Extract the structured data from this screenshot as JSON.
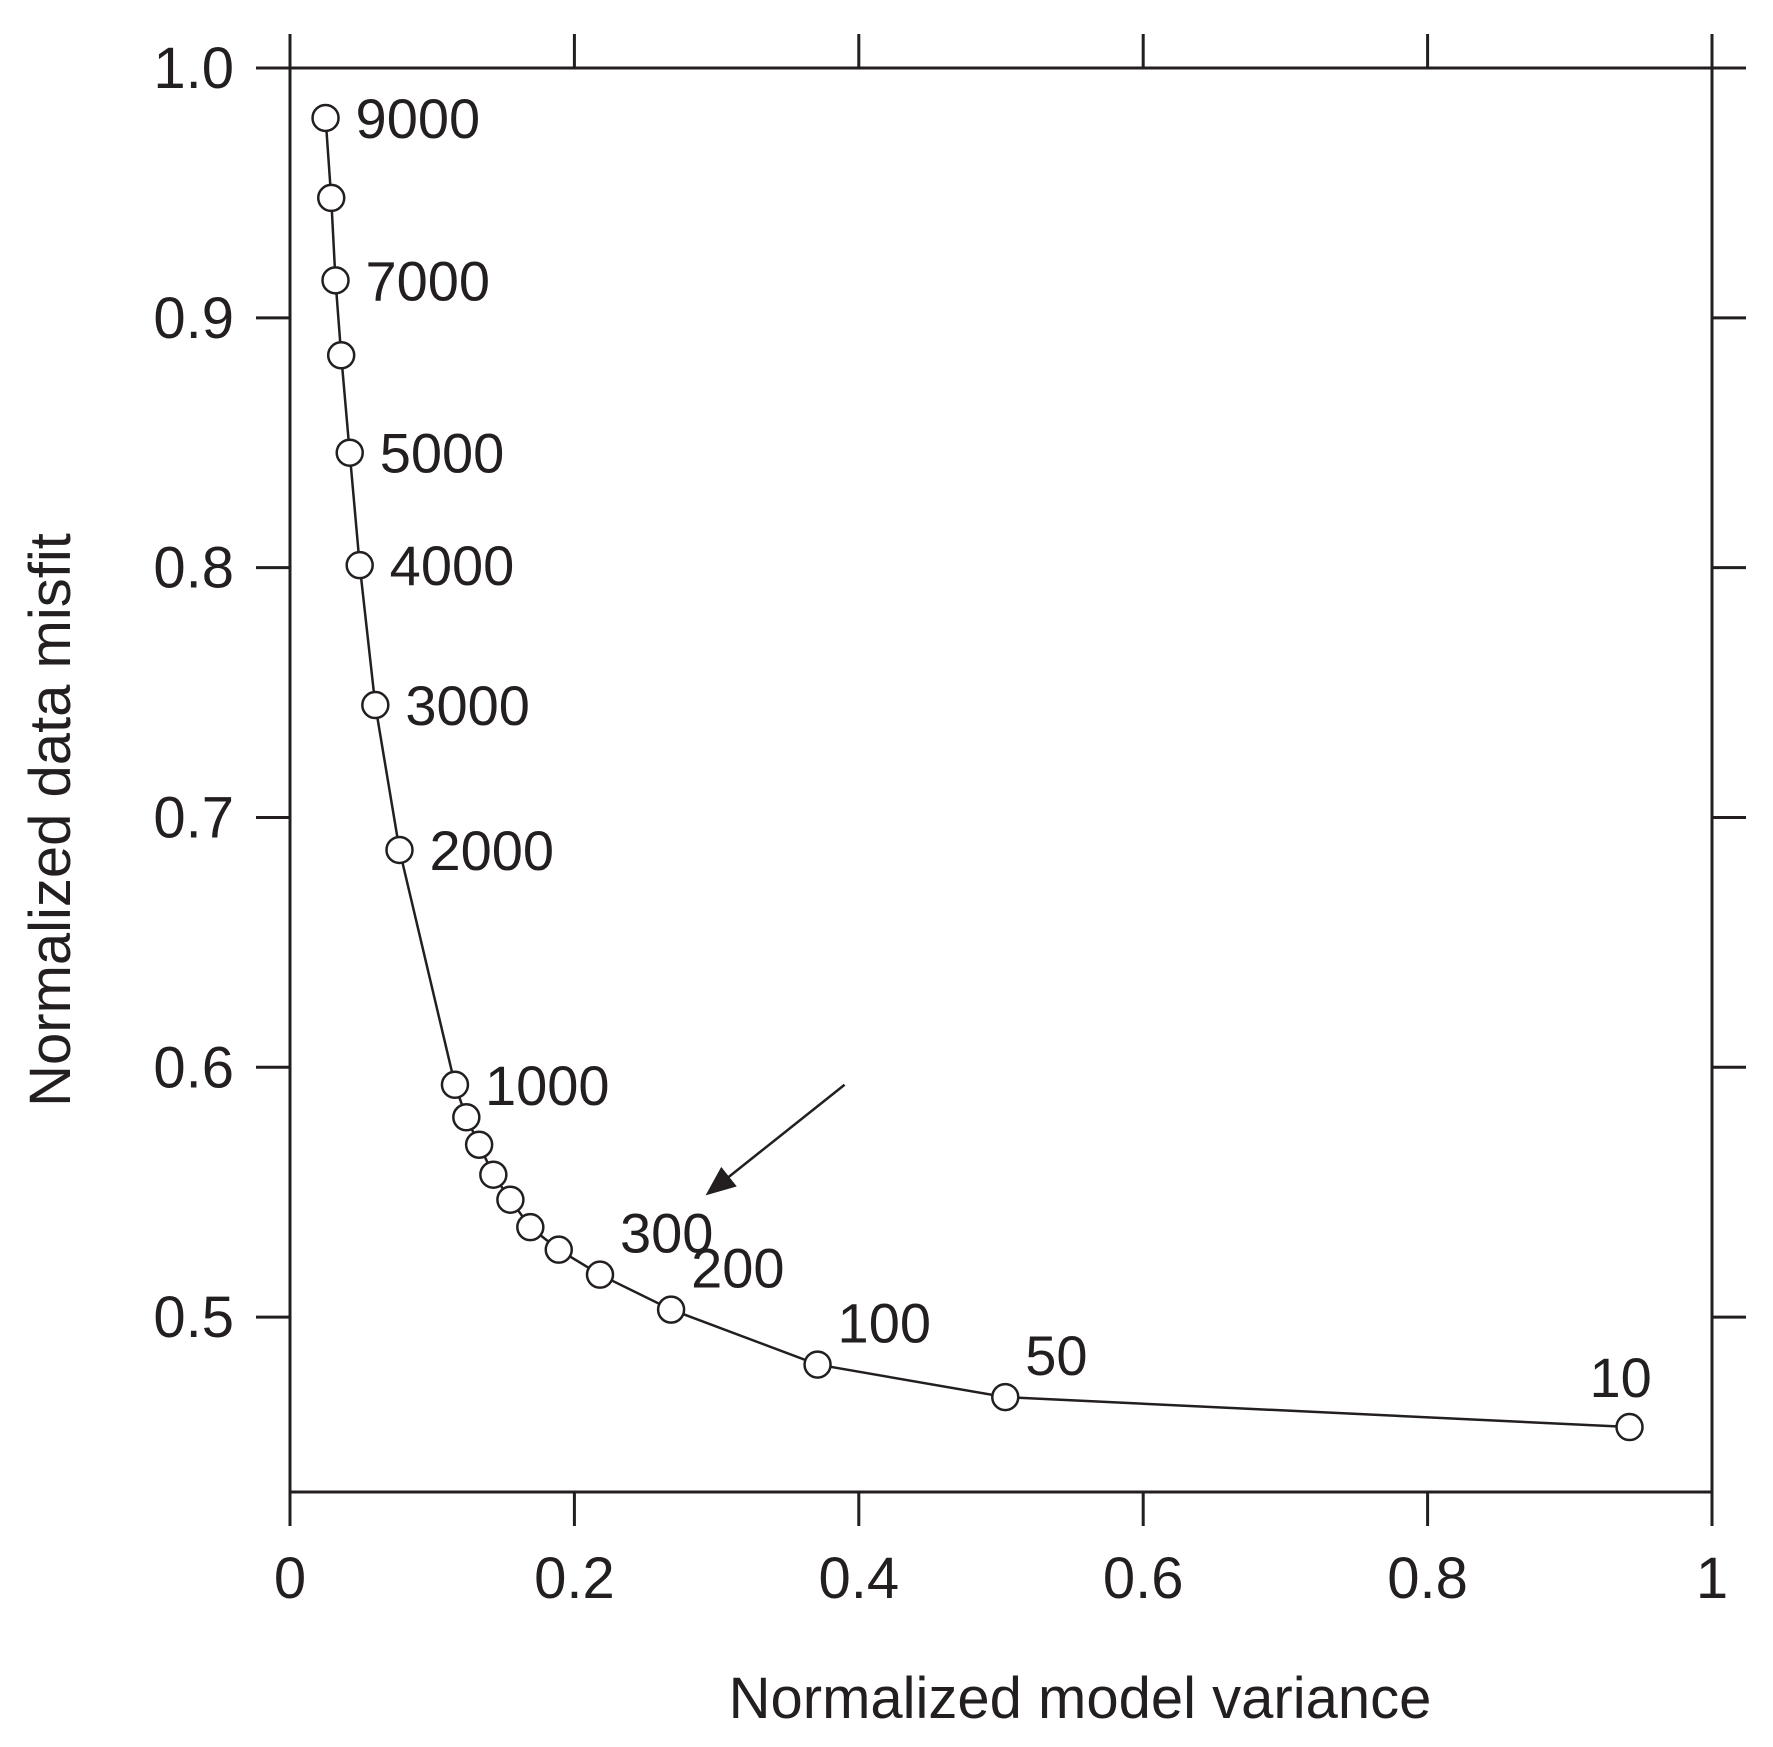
{
  "chart_data": {
    "type": "line",
    "xlabel": "Normalized model variance",
    "ylabel": "Normalized data misfit",
    "xlim": [
      0,
      1
    ],
    "ylim": [
      0.43,
      1.0
    ],
    "x_ticks": [
      "0",
      "0.2",
      "0.4",
      "0.6",
      "0.8",
      "1"
    ],
    "y_ticks": [
      "0.5",
      "0.6",
      "0.7",
      "0.8",
      "0.9",
      "1.0"
    ],
    "grid": false,
    "legend": null,
    "series": [
      {
        "marker": "open-circle",
        "points": [
          {
            "x": 0.025,
            "y": 0.98,
            "label": "9000"
          },
          {
            "x": 0.029,
            "y": 0.948,
            "label": ""
          },
          {
            "x": 0.032,
            "y": 0.915,
            "label": "7000"
          },
          {
            "x": 0.036,
            "y": 0.885,
            "label": ""
          },
          {
            "x": 0.042,
            "y": 0.846,
            "label": "5000"
          },
          {
            "x": 0.049,
            "y": 0.801,
            "label": "4000"
          },
          {
            "x": 0.06,
            "y": 0.745,
            "label": "3000"
          },
          {
            "x": 0.077,
            "y": 0.687,
            "label": "2000"
          },
          {
            "x": 0.116,
            "y": 0.593,
            "label": "1000"
          },
          {
            "x": 0.124,
            "y": 0.58,
            "label": ""
          },
          {
            "x": 0.133,
            "y": 0.569,
            "label": ""
          },
          {
            "x": 0.143,
            "y": 0.557,
            "label": ""
          },
          {
            "x": 0.155,
            "y": 0.547,
            "label": ""
          },
          {
            "x": 0.169,
            "y": 0.536,
            "label": ""
          },
          {
            "x": 0.189,
            "y": 0.527,
            "label": ""
          },
          {
            "x": 0.218,
            "y": 0.517,
            "label": "300"
          },
          {
            "x": 0.268,
            "y": 0.503,
            "label": "200"
          },
          {
            "x": 0.371,
            "y": 0.481,
            "label": "100"
          },
          {
            "x": 0.503,
            "y": 0.468,
            "label": "50"
          },
          {
            "x": 0.942,
            "y": 0.456,
            "label": "10"
          }
        ]
      }
    ],
    "annotations": [
      {
        "type": "arrow",
        "from": {
          "x": 0.39,
          "y": 0.593
        },
        "to": {
          "x": 0.295,
          "y": 0.55
        }
      }
    ]
  }
}
